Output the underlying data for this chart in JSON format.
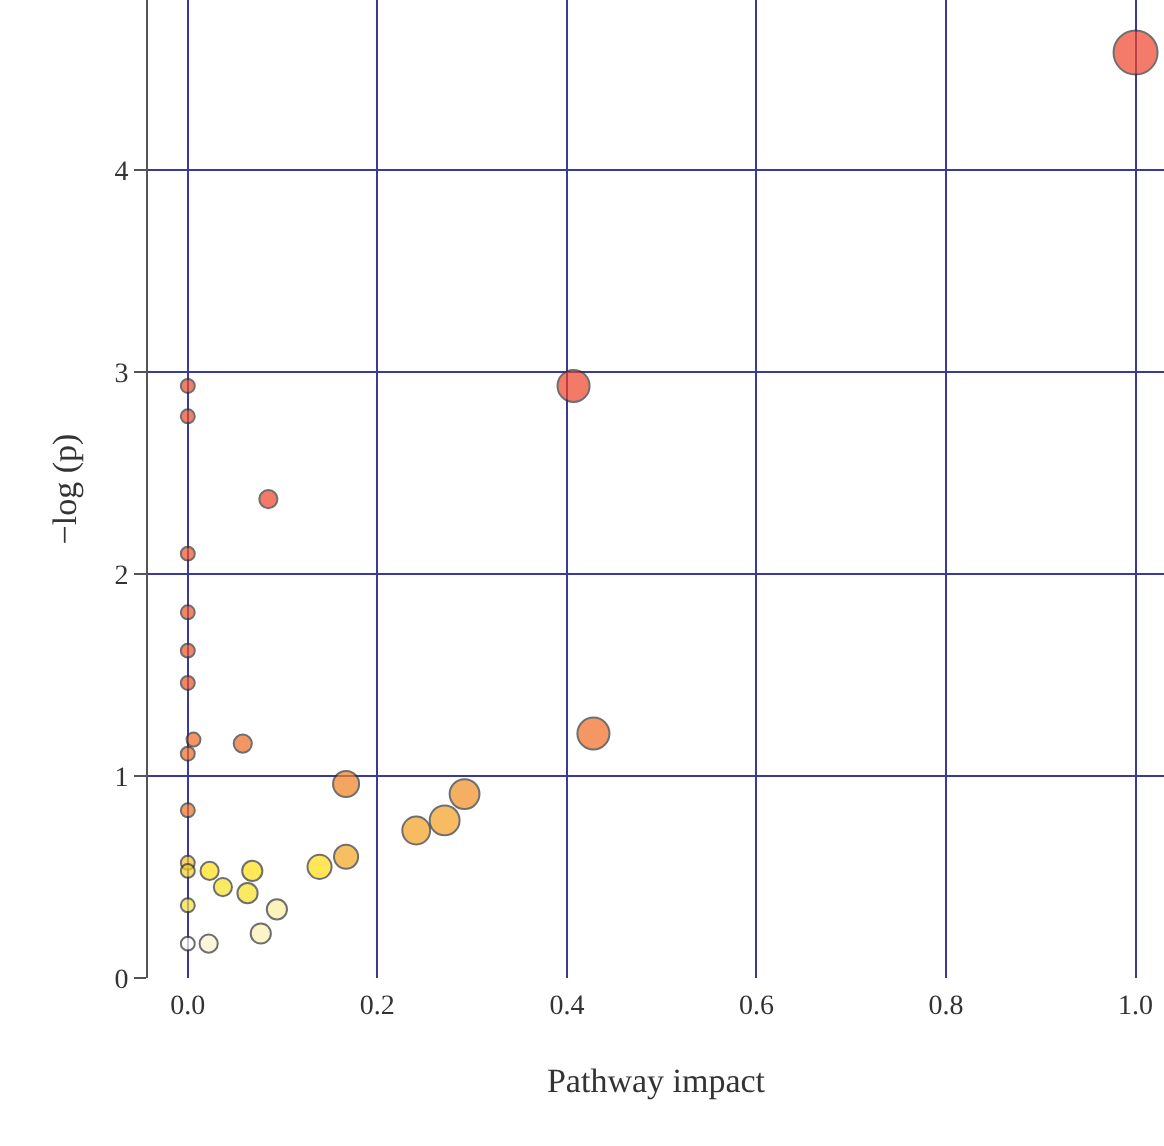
{
  "chart_data": {
    "type": "bubble",
    "xlabel": "Pathway impact",
    "ylabel": "−log (p)",
    "x": [
      0,
      0,
      0.085,
      0,
      0,
      0,
      0,
      0.006,
      0,
      0.058,
      0.167,
      0,
      0,
      0,
      0.023,
      0.068,
      0.037,
      0.063,
      0,
      0.094,
      0.077,
      0,
      0.022,
      0.139,
      0.167,
      0.241,
      0.271,
      0.292,
      0.407,
      0.428,
      1.0
    ],
    "values": [
      2.93,
      2.78,
      2.37,
      2.1,
      1.81,
      1.62,
      1.46,
      1.18,
      1.11,
      1.16,
      0.96,
      0.83,
      0.57,
      0.53,
      0.53,
      0.53,
      0.45,
      0.42,
      0.36,
      0.34,
      0.22,
      0.17,
      0.17,
      0.55,
      0.6,
      0.73,
      0.78,
      0.91,
      2.93,
      1.21,
      4.58
    ],
    "sizes": [
      0.1,
      0.1,
      0.17,
      0.1,
      0.1,
      0.1,
      0.1,
      0.1,
      0.1,
      0.17,
      0.35,
      0.1,
      0.1,
      0.1,
      0.17,
      0.21,
      0.17,
      0.21,
      0.1,
      0.21,
      0.21,
      0.1,
      0.17,
      0.3,
      0.3,
      0.4,
      0.46,
      0.46,
      0.53,
      0.53,
      1
    ],
    "colors": [
      "#e84a2a",
      "#e84a2a",
      "#ee4228",
      "#ec5228",
      "#ec5228",
      "#ec5228",
      "#ec5228",
      "#f06a22",
      "#f06a22",
      "#f06a22",
      "#f28020",
      "#f07020",
      "#f5c030",
      "#f5d020",
      "#ffe010",
      "#ffe010",
      "#f8e020",
      "#f8e020",
      "#f5e040",
      "#f8f0a0",
      "#f8f0b0",
      "#ffffff",
      "#f8f4c8",
      "#ffdc10",
      "#f5a520",
      "#f5a020",
      "#f5a020",
      "#f28e22",
      "#ee4228",
      "#f26a22",
      "#f0442c"
    ],
    "xlim": [
      -0.042,
      1.03
    ],
    "ylim": [
      0,
      4.84
    ],
    "xticks": [
      {
        "value": 0,
        "label": "0.0"
      },
      {
        "value": 0.2,
        "label": "0.2"
      },
      {
        "value": 0.4,
        "label": "0.4"
      },
      {
        "value": 0.6,
        "label": "0.6"
      },
      {
        "value": 0.8,
        "label": "0.8"
      },
      {
        "value": 1,
        "label": "1.0"
      }
    ],
    "yticks": [
      0,
      1,
      2,
      3,
      4
    ],
    "grid": true,
    "marker": "circle"
  }
}
